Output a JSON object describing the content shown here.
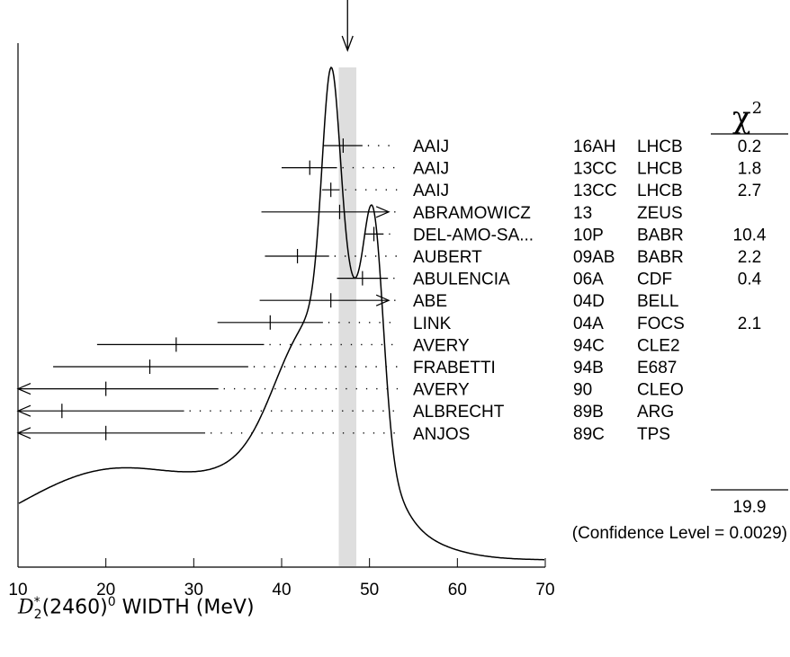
{
  "chart_data": {
    "type": "ideogram",
    "xlabel": {
      "symbol": "D",
      "superscript": "*",
      "subscript": "2",
      "text_after": "(2460)",
      "superscript2": "0",
      "text_tail": " WIDTH (MeV)"
    },
    "xlim": [
      10,
      70
    ],
    "x_ticks": [
      10,
      20,
      30,
      40,
      50,
      60,
      70
    ],
    "average": {
      "value": 47.5,
      "band": [
        46.5,
        48.5
      ]
    },
    "chi2_header": "χ",
    "chi2_header_power": "2",
    "measurements": [
      {
        "author": "AAIJ",
        "code": "16AH",
        "experiment": "LHCB",
        "chi2": "0.2",
        "value": 47.0,
        "low": 44.8,
        "high": 49.2
      },
      {
        "author": "AAIJ",
        "code": "13CC",
        "experiment": "LHCB",
        "chi2": "1.8",
        "value": 43.2,
        "low": 40.0,
        "high": 46.3
      },
      {
        "author": "AAIJ",
        "code": "13CC",
        "experiment": "LHCB",
        "chi2": "2.7",
        "value": 45.6,
        "low": 44.6,
        "high": 46.6
      },
      {
        "author": "ABRAMOWICZ",
        "code": "13",
        "experiment": "ZEUS",
        "chi2": "",
        "value": 46.6,
        "low": 37.7,
        "high": 52.2,
        "arrow_right": true
      },
      {
        "author": "DEL-AMO-SA...",
        "code": "10P",
        "experiment": "BABR",
        "chi2": "10.4",
        "value": 50.5,
        "low": 49.4,
        "high": 51.6
      },
      {
        "author": "AUBERT",
        "code": "09AB",
        "experiment": "BABR",
        "chi2": "2.2",
        "value": 41.8,
        "low": 38.1,
        "high": 45.4
      },
      {
        "author": "ABULENCIA",
        "code": "06A",
        "experiment": "CDF",
        "chi2": "0.4",
        "value": 49.2,
        "low": 46.3,
        "high": 52.1
      },
      {
        "author": "ABE",
        "code": "04D",
        "experiment": "BELL",
        "chi2": "",
        "value": 45.6,
        "low": 37.5,
        "high": 52.2,
        "arrow_right": true
      },
      {
        "author": "LINK",
        "code": "04A",
        "experiment": "FOCS",
        "chi2": "2.1",
        "value": 38.7,
        "low": 32.7,
        "high": 44.7
      },
      {
        "author": "AVERY",
        "code": "94C",
        "experiment": "CLE2",
        "chi2": "",
        "value": 28.0,
        "low": 19.0,
        "high": 38.0
      },
      {
        "author": "FRABETTI",
        "code": "94B",
        "experiment": "E687",
        "chi2": "",
        "value": 25.0,
        "low": 14.0,
        "high": 36.2
      },
      {
        "author": "AVERY",
        "code": "90",
        "experiment": "CLEO",
        "chi2": "",
        "value": 20.0,
        "low": 10.0,
        "high": 32.8,
        "arrow_left": true
      },
      {
        "author": "ALBRECHT",
        "code": "89B",
        "experiment": "ARG",
        "chi2": "",
        "value": 15.0,
        "low": 10.0,
        "high": 28.9,
        "arrow_left": true
      },
      {
        "author": "ANJOS",
        "code": "89C",
        "experiment": "TPS",
        "chi2": "",
        "value": 20.0,
        "low": 10.0,
        "high": 31.3,
        "arrow_left": true
      }
    ],
    "chi2_total": "19.9",
    "confidence_level": "(Confidence Level = 0.0029)"
  }
}
